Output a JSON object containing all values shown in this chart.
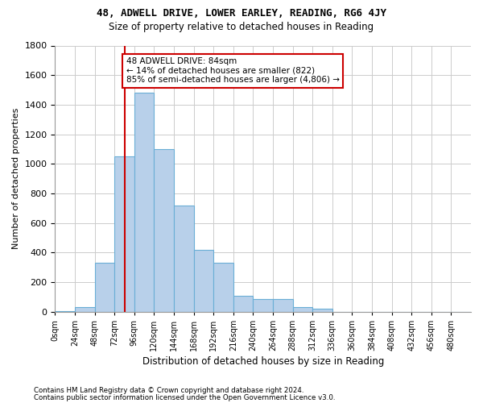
{
  "title1": "48, ADWELL DRIVE, LOWER EARLEY, READING, RG6 4JY",
  "title2": "Size of property relative to detached houses in Reading",
  "xlabel": "Distribution of detached houses by size in Reading",
  "ylabel": "Number of detached properties",
  "bar_color": "#b8d0ea",
  "bar_edgecolor": "#6aaed6",
  "bin_starts": [
    0,
    24,
    48,
    72,
    96,
    120,
    144,
    168,
    192,
    216,
    240,
    264,
    288,
    312,
    336,
    360,
    384,
    408,
    432,
    456,
    480
  ],
  "bin_width": 24,
  "bar_heights": [
    5,
    30,
    330,
    1050,
    1480,
    1100,
    720,
    420,
    330,
    110,
    85,
    85,
    30,
    20,
    0,
    0,
    0,
    0,
    0,
    0,
    0
  ],
  "property_size": 84,
  "red_line_color": "#cc0000",
  "annotation_line1": "48 ADWELL DRIVE: 84sqm",
  "annotation_line2": "← 14% of detached houses are smaller (822)",
  "annotation_line3": "85% of semi-detached houses are larger (4,806) →",
  "annotation_box_edgecolor": "#cc0000",
  "annotation_box_facecolor": "#ffffff",
  "ylim": [
    0,
    1800
  ],
  "yticks": [
    0,
    200,
    400,
    600,
    800,
    1000,
    1200,
    1400,
    1600,
    1800
  ],
  "grid_color": "#cccccc",
  "background_color": "#ffffff",
  "footnote1": "Contains HM Land Registry data © Crown copyright and database right 2024.",
  "footnote2": "Contains public sector information licensed under the Open Government Licence v3.0."
}
